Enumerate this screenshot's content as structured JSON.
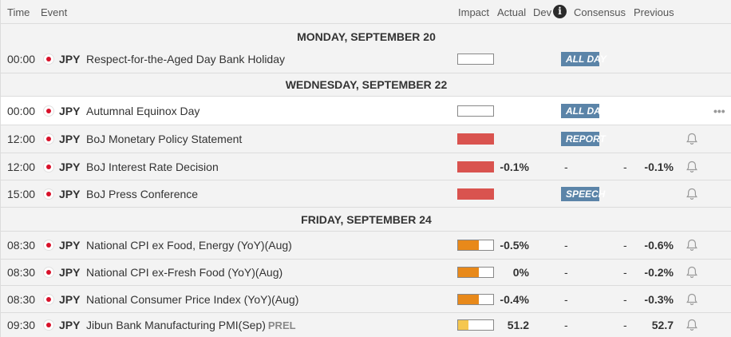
{
  "header": {
    "time": "Time",
    "event": "Event",
    "impact": "Impact",
    "actual": "Actual",
    "dev": "Dev",
    "info_icon_glyph": "i",
    "consensus": "Consensus",
    "previous": "Previous"
  },
  "colors": {
    "impact_high": "#d9534f",
    "impact_medium": "#e8891a",
    "impact_low": "#f5c74f",
    "tag_bg": "#5b84a8"
  },
  "days": [
    "MONDAY, SEPTEMBER 20",
    "WEDNESDAY, SEPTEMBER 22",
    "FRIDAY, SEPTEMBER 24"
  ],
  "events": [
    {
      "time": "00:00",
      "currency": "JPY",
      "name": "Respect-for-the-Aged Day Bank Holiday",
      "impact": "none",
      "impact_level": 0,
      "actual": "",
      "dev": "",
      "consensus": "",
      "previous": "",
      "tag": "ALL DAY",
      "bell": false,
      "more": false
    },
    {
      "time": "00:00",
      "currency": "JPY",
      "name": "Autumnal Equinox Day",
      "impact": "none",
      "impact_level": 0,
      "actual": "",
      "dev": "",
      "consensus": "",
      "previous": "",
      "tag": "ALL DAY",
      "bell": false,
      "more": true,
      "more_glyph": "•••"
    },
    {
      "time": "12:00",
      "currency": "JPY",
      "name": "BoJ Monetary Policy Statement",
      "impact": "high",
      "impact_level": 1,
      "actual": "",
      "dev": "",
      "consensus": "",
      "previous": "",
      "tag": "REPORT",
      "bell": true,
      "more": false
    },
    {
      "time": "12:00",
      "currency": "JPY",
      "name": "BoJ Interest Rate Decision",
      "impact": "high",
      "impact_level": 1,
      "actual": "-0.1%",
      "dev": "-",
      "consensus": "-",
      "previous": "-0.1%",
      "tag": "",
      "bell": true,
      "more": false
    },
    {
      "time": "15:00",
      "currency": "JPY",
      "name": "BoJ Press Conference",
      "impact": "high",
      "impact_level": 1,
      "actual": "",
      "dev": "",
      "consensus": "",
      "previous": "",
      "tag": "SPEECH",
      "bell": true,
      "more": false
    },
    {
      "time": "08:30",
      "currency": "JPY",
      "name": "National CPI ex Food, Energy (YoY)(Aug)",
      "impact": "medium",
      "impact_level": 0.6,
      "actual": "-0.5%",
      "dev": "-",
      "consensus": "-",
      "previous": "-0.6%",
      "tag": "",
      "bell": true,
      "more": false
    },
    {
      "time": "08:30",
      "currency": "JPY",
      "name": "National CPI ex-Fresh Food (YoY)(Aug)",
      "impact": "medium",
      "impact_level": 0.6,
      "actual": "0%",
      "dev": "-",
      "consensus": "-",
      "previous": "-0.2%",
      "tag": "",
      "bell": true,
      "more": false
    },
    {
      "time": "08:30",
      "currency": "JPY",
      "name": "National Consumer Price Index (YoY)(Aug)",
      "impact": "medium",
      "impact_level": 0.6,
      "actual": "-0.4%",
      "dev": "-",
      "consensus": "-",
      "previous": "-0.3%",
      "tag": "",
      "bell": true,
      "more": false
    },
    {
      "time": "09:30",
      "currency": "JPY",
      "name": "Jibun Bank Manufacturing PMI(Sep)",
      "prel": "PREL",
      "impact": "low",
      "impact_level": 0.3,
      "actual": "51.2",
      "dev": "-",
      "consensus": "-",
      "previous": "52.7",
      "tag": "",
      "bell": true,
      "more": false
    }
  ]
}
